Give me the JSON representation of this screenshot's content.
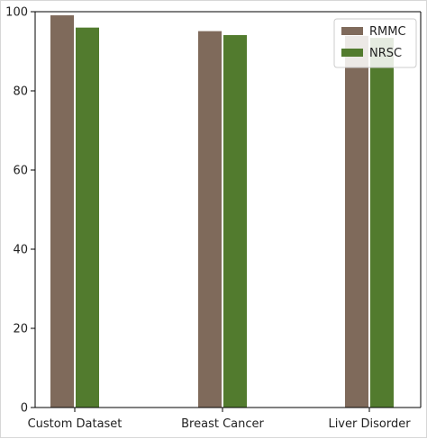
{
  "chart_data": {
    "type": "bar",
    "title": "",
    "xlabel": "",
    "ylabel": "",
    "categories": [
      "Custom Dataset",
      "Breast Cancer",
      "Liver Disorder"
    ],
    "series": [
      {
        "name": "RMMC",
        "color": "#7f6a5b",
        "values": [
          99.2,
          95.2,
          94.0
        ]
      },
      {
        "name": "NRSC",
        "color": "#527b2e",
        "values": [
          96.1,
          94.2,
          93.5
        ]
      }
    ],
    "ylim": [
      0,
      100
    ],
    "yticks": [
      "0",
      "20",
      "40",
      "60",
      "80",
      "100"
    ],
    "ytick_values": [
      0,
      20,
      40,
      60,
      80,
      100
    ],
    "grid": false,
    "legend": {
      "position": "top-right"
    }
  }
}
